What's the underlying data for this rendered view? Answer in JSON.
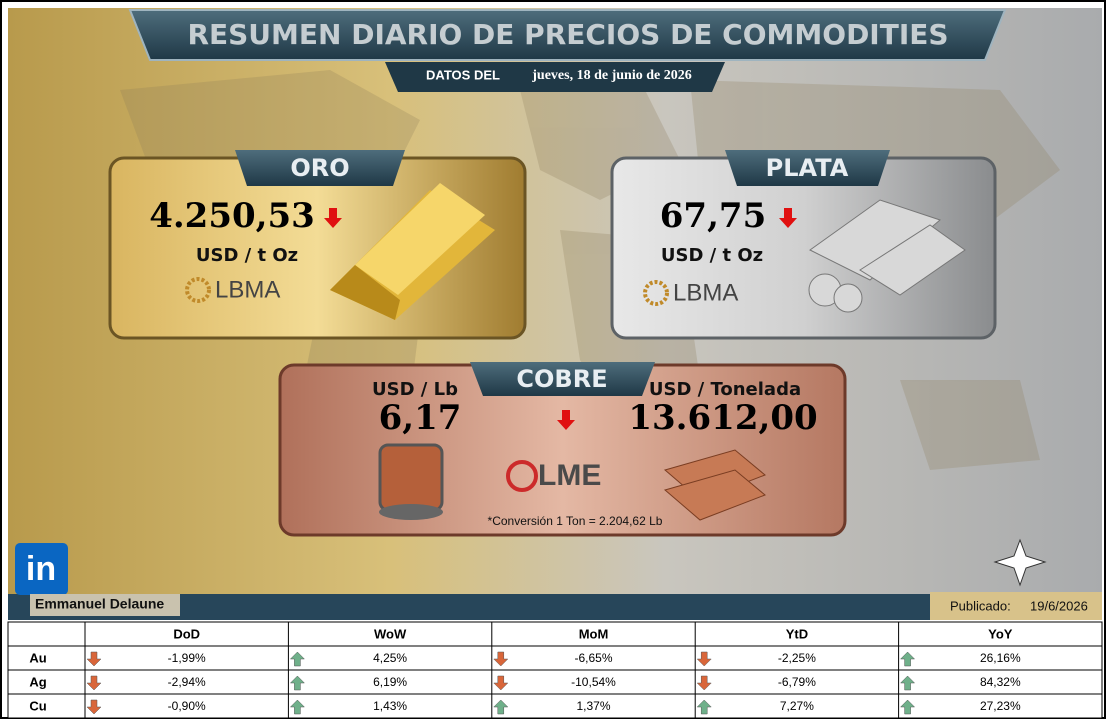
{
  "header": {
    "title": "RESUMEN DIARIO DE PRECIOS DE COMMODITIES",
    "date_label": "DATOS DEL",
    "date": "jueves, 18 de junio de 2026"
  },
  "cards": [
    {
      "name": "ORO",
      "price": "4.250,53",
      "unit": "USD / t Oz",
      "source": "LBMA"
    },
    {
      "name": "PLATA",
      "price": "67,75",
      "unit": "USD / t Oz",
      "source": "LBMA"
    }
  ],
  "copper": {
    "name": "COBRE",
    "unit_lb": "USD / Lb",
    "price_lb": "6,17",
    "unit_ton": "USD / Tonelada",
    "price_ton": "13.612,00",
    "source": "LME",
    "note": "*Conversión 1 Ton = 2.204,62 Lb"
  },
  "linkedin": "in",
  "author": "Emmanuel Delaune",
  "published_label": "Publicado:",
  "published_date": "19/6/2026",
  "table": {
    "columns": [
      "DoD",
      "WoW",
      "MoM",
      "YtD",
      "YoY"
    ],
    "rows": [
      {
        "label": "Au",
        "cells": [
          "-1,99%",
          "4,25%",
          "-6,65%",
          "-2,25%",
          "26,16%"
        ]
      },
      {
        "label": "Ag",
        "cells": [
          "-2,94%",
          "6,19%",
          "-10,54%",
          "-6,79%",
          "84,32%"
        ]
      },
      {
        "label": "Cu",
        "cells": [
          "-0,90%",
          "1,43%",
          "1,37%",
          "7,27%",
          "27,23%"
        ]
      }
    ]
  }
}
